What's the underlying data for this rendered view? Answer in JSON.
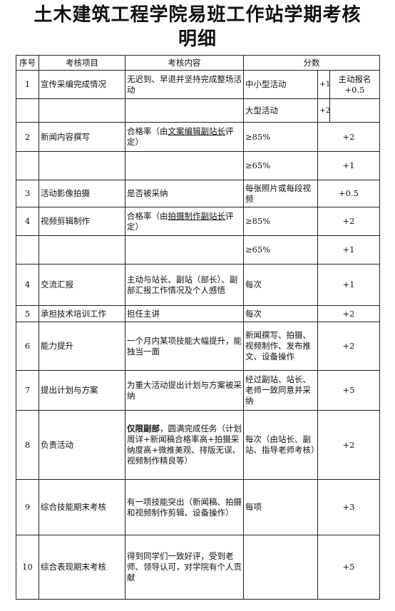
{
  "title": {
    "line1": "土木建筑工程学院易班工作站学期考核",
    "line2": "明细"
  },
  "headers": {
    "index": "序号",
    "item": "考核项目",
    "content": "考核内容",
    "score": "分数"
  },
  "rows": [
    {
      "index": "1",
      "item": "宣传采编完成情况",
      "content": "无迟到、早退并坚持完成整场活动",
      "r1_cond": "中小型活动",
      "r1_pts": "+1",
      "r1_extra": "主动报名+0.5",
      "r2_cond": "大型活动",
      "r2_pts": "+2"
    },
    {
      "index": "2",
      "item": "新闻内容撰写",
      "content_pre": "合格率（由",
      "content_u": "文案编辑副站长",
      "content_post": "评定）",
      "r1_cond": "≥85%",
      "r1_pts": "+2",
      "r2_cond": "≥65%",
      "r2_pts": "+1"
    },
    {
      "index": "3",
      "item": "活动影像拍摄",
      "content": "是否被采纳",
      "cond": "每张照片或每段视频",
      "pts": "+0.5"
    },
    {
      "index": "4",
      "item": "视频剪辑制作",
      "content_pre": "合格率（由",
      "content_u": "拍摄制作副站长",
      "content_post": "评定）",
      "r1_cond": "≥85%",
      "r1_pts": "+2",
      "r2_cond": "≥65%",
      "r2_pts": "+1"
    },
    {
      "index": "4",
      "item": "交流汇报",
      "content": "主动与站长、副站（部长）、副部汇报工作情况及个人感悟",
      "cond": "每次",
      "pts": "+1"
    },
    {
      "index": "5",
      "item": "承担技术培训工作",
      "content": "担任主讲",
      "cond": "每次",
      "pts": "+2"
    },
    {
      "index": "6",
      "item": "能力提升",
      "content": "一个月内某项技能大幅提升，能独当一面",
      "cond": "新闻撰写、拍摄、视频制作、发布推文、设备操作",
      "pts": "+2"
    },
    {
      "index": "7",
      "item": "提出计划与方案",
      "content": "为重大活动提出计划与方案被采纳",
      "cond": "经过副站、站长、老师一致同意并采纳",
      "pts": "+5"
    },
    {
      "index": "8",
      "item": "负责活动",
      "content_bold": "仅限副部",
      "content_rest": "，圆满完成任务（计划周详+新闻稿合格率高+拍摄采纳度高+微推美观、排版无误、视频制作精良等）",
      "cond": "每次（由站长、副站、指导老师考核）",
      "pts": "+2"
    },
    {
      "index": "9",
      "item": "综合技能期末考核",
      "content": "有一项技能突出（新闻稿、拍摄和视频制作剪辑、设备操作）",
      "cond": "每项",
      "pts": "+3"
    },
    {
      "index": "10",
      "item": "综合表现期末考核",
      "content": "得到同学们一致好评，受到老师、领导认可，对学院有个人贡献",
      "cond": "",
      "pts": "+5"
    }
  ]
}
